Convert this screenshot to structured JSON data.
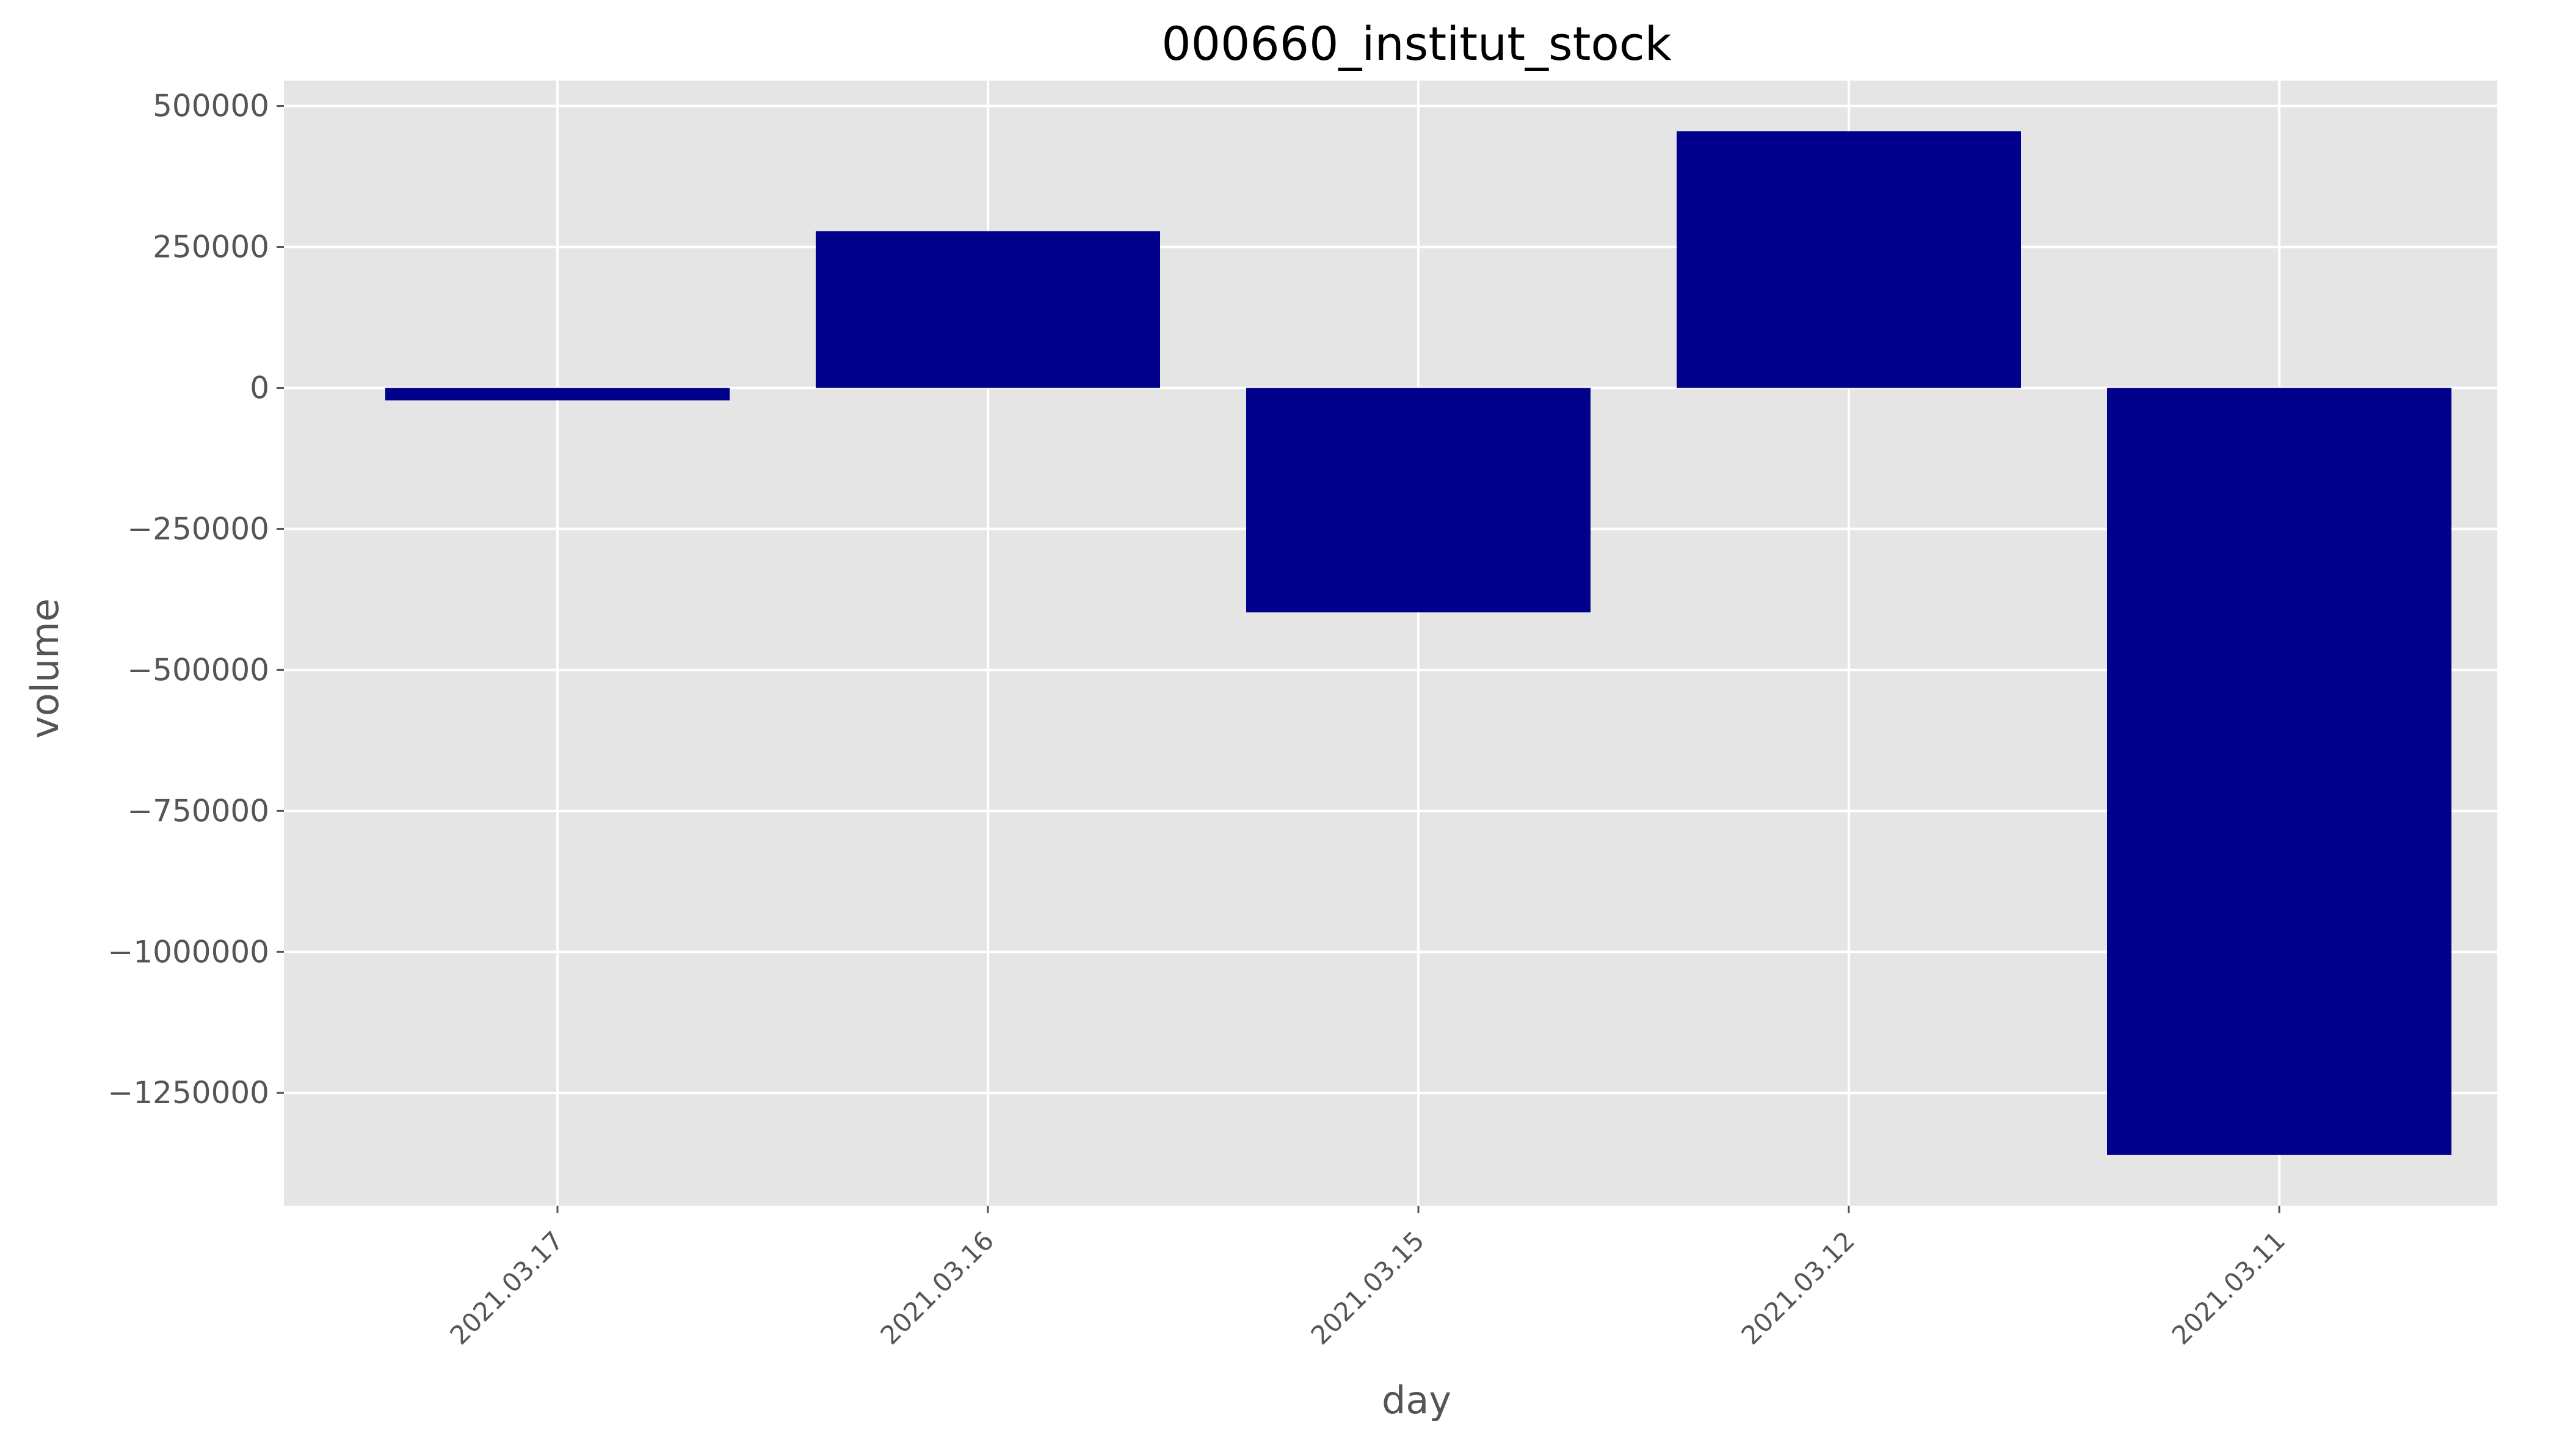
{
  "chart_data": {
    "type": "bar",
    "title": "000660_institut_stock",
    "xlabel": "day",
    "ylabel": "volume",
    "categories": [
      "2021.03.17",
      "2021.03.16",
      "2021.03.15",
      "2021.03.12",
      "2021.03.11"
    ],
    "values": [
      -22000,
      278000,
      -398000,
      455000,
      -1360000
    ],
    "ylim": [
      -1450000,
      545000
    ],
    "yticks": [
      500000,
      250000,
      0,
      -250000,
      -500000,
      -750000,
      -1000000,
      -1250000
    ],
    "ytick_labels": [
      "500000",
      "250000",
      "0",
      "−250000",
      "−500000",
      "−750000",
      "−1000000",
      "−1250000"
    ],
    "bar_color": "#00008b",
    "background_color": "#e5e5e5",
    "grid": true,
    "legend": "none"
  }
}
